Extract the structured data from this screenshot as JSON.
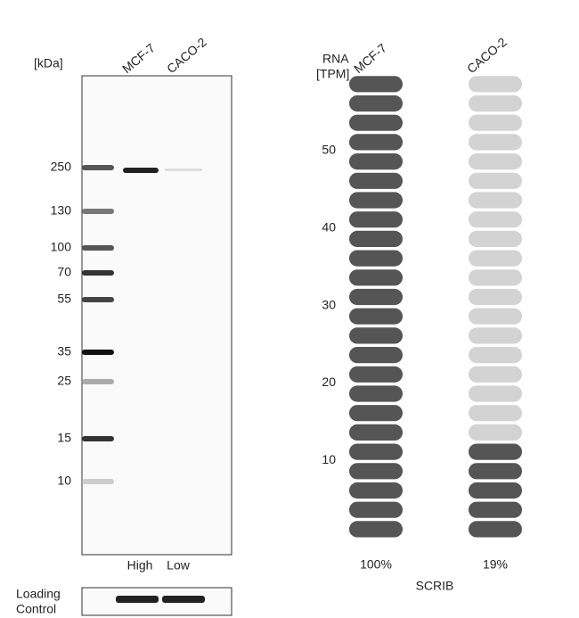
{
  "blot": {
    "unit": "[kDa]",
    "lanes": [
      "MCF-7",
      "CACO-2"
    ],
    "markers": [
      "250",
      "130",
      "100",
      "70",
      "55",
      "35",
      "25",
      "15",
      "10"
    ],
    "lane_levels": [
      "High",
      "Low"
    ],
    "loading_control": [
      "Loading",
      "Control"
    ]
  },
  "rna": {
    "axis_label": [
      "RNA",
      "[TPM]"
    ],
    "ticks": [
      10,
      20,
      30,
      40,
      50
    ],
    "total_pills": 24,
    "columns": [
      {
        "name": "MCF-7",
        "percent": "100%",
        "filled": 24
      },
      {
        "name": "CACO-2",
        "percent": "19%",
        "filled": 5
      }
    ],
    "gene": "SCRIB"
  }
}
